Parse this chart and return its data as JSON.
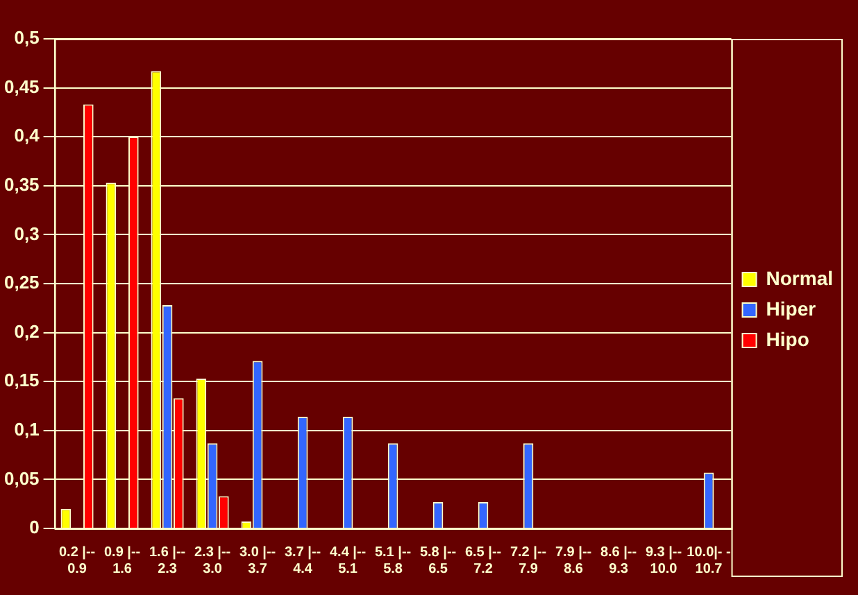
{
  "chart_data": {
    "type": "bar",
    "categories": [
      "0.2 |-- 0.9",
      "0.9 |-- 1.6",
      "1.6 |-- 2.3",
      "2.3 |-- 3.0",
      "3.0 |-- 3.7",
      "3.7 |-- 4.4",
      "4.4 |-- 5.1",
      "5.1 |-- 5.8",
      "5.8 |-- 6.5",
      "6.5 |-- 7.2",
      "7.2 |-- 7.9",
      "7.9 |-- 8.6",
      "8.6 |-- 9.3",
      "9.3 |-- 10.0",
      "10.0|- - 10.7"
    ],
    "series": [
      {
        "name": "Normal",
        "color": "#ffff00",
        "values": [
          0.02,
          0.353,
          0.467,
          0.153,
          0.007,
          null,
          null,
          null,
          null,
          null,
          null,
          null,
          null,
          null,
          null
        ]
      },
      {
        "name": "Hiper",
        "color": "#3366ff",
        "values": [
          null,
          null,
          0.228,
          0.087,
          0.171,
          0.114,
          0.114,
          0.087,
          0.027,
          0.027,
          0.087,
          null,
          null,
          null,
          0.057
        ]
      },
      {
        "name": "Hipo",
        "color": "#ff0000",
        "values": [
          0.433,
          0.4,
          0.133,
          0.033,
          null,
          null,
          null,
          null,
          null,
          null,
          null,
          null,
          null,
          null,
          null
        ]
      }
    ],
    "ylim": [
      0,
      0.5
    ],
    "yticks": [
      {
        "value": 0,
        "label": "0"
      },
      {
        "value": 0.05,
        "label": "0,05"
      },
      {
        "value": 0.1,
        "label": "0,1"
      },
      {
        "value": 0.15,
        "label": "0,15"
      },
      {
        "value": 0.2,
        "label": "0,2"
      },
      {
        "value": 0.25,
        "label": "0,25"
      },
      {
        "value": 0.3,
        "label": "0,3"
      },
      {
        "value": 0.35,
        "label": "0,35"
      },
      {
        "value": 0.4,
        "label": "0,4"
      },
      {
        "value": 0.45,
        "label": "0,45"
      },
      {
        "value": 0.5,
        "label": "0,5"
      }
    ],
    "grid": "y",
    "legend": "right"
  }
}
